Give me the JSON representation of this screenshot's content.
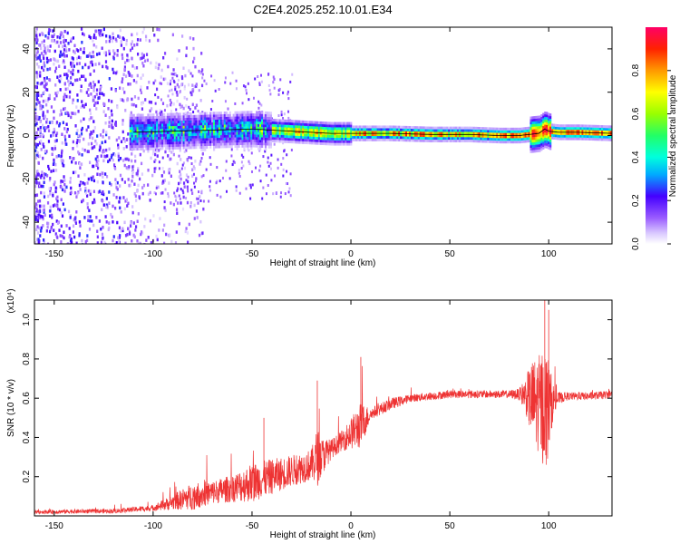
{
  "title": "C2E4.2025.252.10.01.E34",
  "chart_data": [
    {
      "type": "heatmap",
      "xlabel": "Height of straight line (km)",
      "ylabel": "Frequency (Hz)",
      "xlim": [
        -160,
        132
      ],
      "ylim": [
        -50,
        50
      ],
      "x_ticks": [
        -150,
        -100,
        -50,
        0,
        50,
        100
      ],
      "y_ticks": [
        -40,
        -20,
        0,
        20,
        40
      ],
      "x_tick_labels": [
        "-150",
        "-100",
        "-50",
        "0",
        "50",
        "100"
      ],
      "y_tick_labels": [
        "-40",
        "-20",
        "0",
        "20",
        "40"
      ],
      "colorbar": {
        "label": "Normalized spectral amplitude",
        "range": [
          0,
          1
        ],
        "ticks": [
          0.0,
          0.2,
          0.4,
          0.6,
          0.8
        ],
        "tick_labels": [
          "0.0",
          "0.2",
          "0.4",
          "0.6",
          "0.8"
        ]
      },
      "line": {
        "x": [
          -110,
          -90,
          -70,
          -50,
          -30,
          -10,
          0,
          20,
          40,
          60,
          75,
          85,
          90,
          95,
          98,
          100,
          105,
          115,
          132
        ],
        "y": [
          1.5,
          2,
          2.5,
          3,
          2,
          1,
          1,
          1,
          0.5,
          0.5,
          0,
          0,
          0.5,
          1,
          3,
          2,
          1.5,
          1.5,
          1
        ]
      }
    },
    {
      "type": "line",
      "xlabel": "Height of straight line (km)",
      "ylabel": "SNR (10 * v/v)",
      "y_multiplier_label": "(x10⁴)",
      "xlim": [
        -160,
        132
      ],
      "ylim": [
        0,
        1.1
      ],
      "x_ticks": [
        -150,
        -100,
        -50,
        0,
        50,
        100
      ],
      "y_ticks": [
        0.2,
        0.4,
        0.6,
        0.8,
        1.0
      ],
      "x_tick_labels": [
        "-150",
        "-100",
        "-50",
        "0",
        "50",
        "100"
      ],
      "y_tick_labels": [
        "0.2",
        "0.4",
        "0.6",
        "0.8",
        "1.0"
      ],
      "series": [
        {
          "color": "#ee3333",
          "envelope": {
            "x": [
              -160,
              -120,
              -100,
              -90,
              -80,
              -70,
              -60,
              -50,
              -40,
              -30,
              -20,
              -17,
              -15,
              -10,
              -5,
              0,
              5,
              10,
              20,
              30,
              40,
              50,
              60,
              70,
              80,
              85,
              88,
              90,
              92,
              95,
              97,
              99,
              100,
              102,
              105,
              110,
              120,
              132
            ],
            "base": [
              0.02,
              0.025,
              0.04,
              0.07,
              0.1,
              0.12,
              0.14,
              0.17,
              0.2,
              0.23,
              0.26,
              0.3,
              0.3,
              0.34,
              0.38,
              0.42,
              0.46,
              0.52,
              0.57,
              0.6,
              0.61,
              0.62,
              0.62,
              0.62,
              0.62,
              0.62,
              0.62,
              0.6,
              0.58,
              0.57,
              0.56,
              0.55,
              0.56,
              0.58,
              0.6,
              0.61,
              0.61,
              0.62
            ],
            "noise": [
              0.01,
              0.012,
              0.015,
              0.04,
              0.07,
              0.06,
              0.07,
              0.1,
              0.09,
              0.08,
              0.08,
              0.15,
              0.1,
              0.05,
              0.05,
              0.08,
              0.12,
              0.03,
              0.03,
              0.02,
              0.02,
              0.02,
              0.02,
              0.02,
              0.02,
              0.03,
              0.08,
              0.15,
              0.22,
              0.25,
              0.3,
              0.3,
              0.25,
              0.1,
              0.03,
              0.02,
              0.02,
              0.02
            ]
          }
        }
      ]
    }
  ]
}
